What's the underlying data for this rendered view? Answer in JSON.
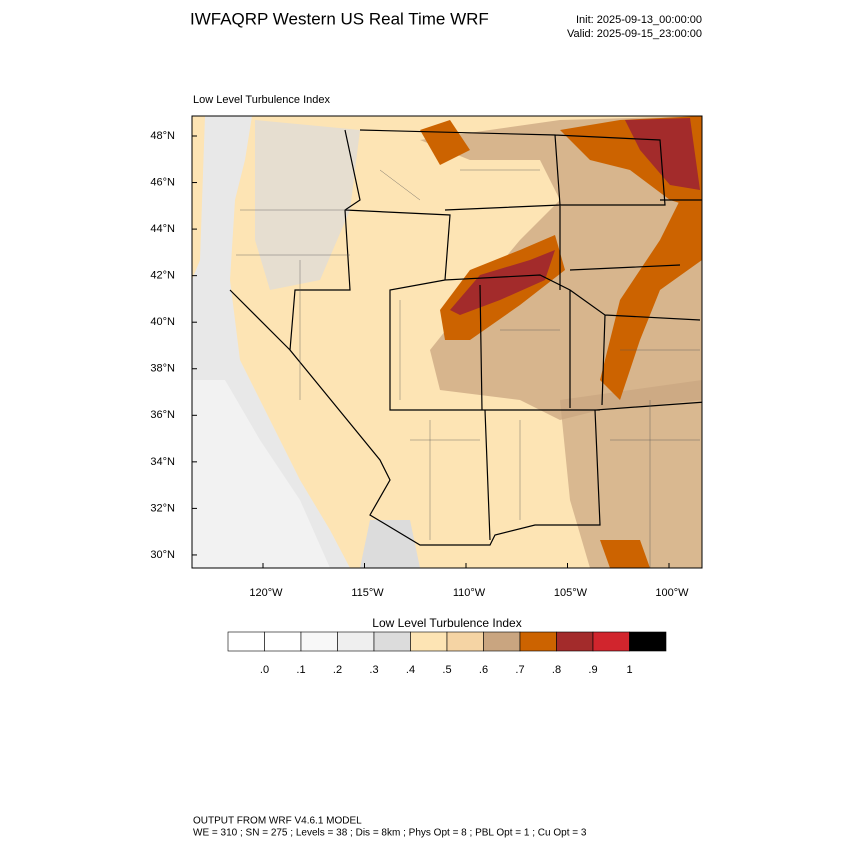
{
  "header": {
    "title": "IWFAQRP Western US Real Time WRF",
    "init": "Init: 2025-09-13_00:00:00",
    "valid": "Valid: 2025-09-15_23:00:00"
  },
  "map": {
    "subtitle": "Low Level Turbulence Index",
    "lat_labels": [
      "48°N",
      "46°N",
      "44°N",
      "42°N",
      "40°N",
      "38°N",
      "36°N",
      "34°N",
      "32°N",
      "30°N"
    ],
    "lon_labels": [
      "120°W",
      "115°W",
      "110°W",
      "105°W",
      "100°W"
    ]
  },
  "colorbar": {
    "title": "Low Level Turbulence Index",
    "colors": [
      "#ffffff",
      "#f8f8f8",
      "#efefef",
      "#dcdcdc",
      "#fde4b4",
      "#f5d4a4",
      "#c9a580",
      "#cc6300",
      "#a32b2b",
      "#d1252d",
      "#000000"
    ],
    "ticks": [
      {
        "value": 0,
        "label": ".0"
      },
      {
        "value": 0.1,
        "label": ".1"
      },
      {
        "value": 0.2,
        "label": ".2"
      },
      {
        "value": 0.3,
        "label": ".3"
      },
      {
        "value": 0.4,
        "label": ".4"
      },
      {
        "value": 0.5,
        "label": ".5"
      },
      {
        "value": 0.6,
        "label": ".6"
      },
      {
        "value": 0.7,
        "label": ".7"
      },
      {
        "value": 0.8,
        "label": ".8"
      },
      {
        "value": 0.9,
        "label": ".9"
      },
      1
    ]
  },
  "footer": {
    "line1": "OUTPUT FROM WRF V4.6.1 MODEL",
    "line2": "WE = 310 ; SN = 275 ; Levels = 38 ; Dis = 8km ; Phys Opt = 8 ; PBL Opt = 1 ; Cu Opt = 3"
  }
}
